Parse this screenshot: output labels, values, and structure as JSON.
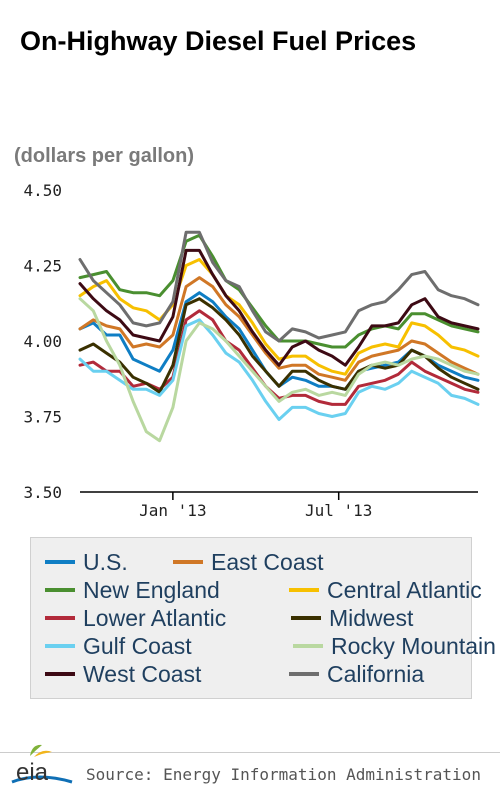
{
  "header": {
    "title": "On-Highway Diesel Fuel Prices",
    "units": "(dollars per gallon)"
  },
  "chart_data": {
    "type": "line",
    "title": "On-Highway Diesel Fuel Prices",
    "ylabel": "(dollars per gallon)",
    "xlabel": "",
    "ylim": [
      3.5,
      4.5
    ],
    "yticks": [
      "4.50",
      "4.25",
      "4.00",
      "3.75",
      "3.50"
    ],
    "xticks": [
      {
        "label": "Jan '13",
        "x": "2013-01-07"
      },
      {
        "label": "Jul '13",
        "x": "2013-07-01"
      }
    ],
    "x_range": [
      "2012-10-01",
      "2013-11-25"
    ],
    "x": [
      "2012-10-01",
      "2012-10-15",
      "2012-10-29",
      "2012-11-12",
      "2012-11-26",
      "2012-12-10",
      "2012-12-24",
      "2013-01-07",
      "2013-01-21",
      "2013-02-04",
      "2013-02-18",
      "2013-03-04",
      "2013-03-18",
      "2013-04-01",
      "2013-04-15",
      "2013-04-29",
      "2013-05-13",
      "2013-05-27",
      "2013-06-10",
      "2013-06-24",
      "2013-07-08",
      "2013-07-22",
      "2013-08-05",
      "2013-08-19",
      "2013-09-02",
      "2013-09-16",
      "2013-09-30",
      "2013-10-14",
      "2013-10-28",
      "2013-11-11",
      "2013-11-25"
    ],
    "series": [
      {
        "name": "U.S.",
        "color": "#0f7ec4",
        "values": [
          4.04,
          4.06,
          4.02,
          4.02,
          3.94,
          3.92,
          3.9,
          3.97,
          4.13,
          4.16,
          4.13,
          4.08,
          4.04,
          3.97,
          3.9,
          3.85,
          3.88,
          3.87,
          3.85,
          3.85,
          3.84,
          3.9,
          3.91,
          3.92,
          3.93,
          3.97,
          3.95,
          3.92,
          3.9,
          3.88,
          3.87
        ]
      },
      {
        "name": "East Coast",
        "color": "#d07726",
        "values": [
          4.04,
          4.07,
          4.05,
          4.04,
          3.98,
          3.99,
          3.98,
          4.02,
          4.18,
          4.21,
          4.18,
          4.12,
          4.08,
          4.02,
          3.96,
          3.91,
          3.92,
          3.92,
          3.89,
          3.88,
          3.87,
          3.93,
          3.95,
          3.96,
          3.97,
          4.0,
          3.99,
          3.96,
          3.93,
          3.91,
          3.89
        ]
      },
      {
        "name": "New England",
        "color": "#4a8f30",
        "values": [
          4.21,
          4.22,
          4.23,
          4.17,
          4.16,
          4.16,
          4.15,
          4.2,
          4.33,
          4.35,
          4.28,
          4.2,
          4.17,
          4.11,
          4.05,
          4.0,
          4.0,
          4.0,
          3.99,
          3.98,
          3.98,
          4.02,
          4.04,
          4.05,
          4.04,
          4.09,
          4.09,
          4.07,
          4.05,
          4.04,
          4.03
        ]
      },
      {
        "name": "Central Atlantic",
        "color": "#f7c000",
        "values": [
          4.15,
          4.18,
          4.2,
          4.14,
          4.11,
          4.1,
          4.07,
          4.12,
          4.25,
          4.27,
          4.22,
          4.15,
          4.12,
          4.06,
          3.99,
          3.94,
          3.95,
          3.95,
          3.92,
          3.9,
          3.89,
          3.96,
          3.98,
          3.99,
          3.98,
          4.06,
          4.05,
          4.02,
          3.98,
          3.97,
          3.95
        ]
      },
      {
        "name": "Lower Atlantic",
        "color": "#b22a3a",
        "values": [
          3.92,
          3.93,
          3.9,
          3.9,
          3.85,
          3.86,
          3.84,
          3.88,
          4.07,
          4.1,
          4.07,
          4.0,
          3.97,
          3.91,
          3.85,
          3.81,
          3.82,
          3.82,
          3.8,
          3.79,
          3.79,
          3.85,
          3.86,
          3.87,
          3.89,
          3.93,
          3.9,
          3.88,
          3.86,
          3.84,
          3.83
        ]
      },
      {
        "name": "Midwest",
        "color": "#3a3000",
        "values": [
          3.97,
          3.99,
          3.96,
          3.93,
          3.88,
          3.86,
          3.83,
          3.92,
          4.12,
          4.14,
          4.11,
          4.07,
          4.02,
          3.95,
          3.9,
          3.85,
          3.9,
          3.9,
          3.87,
          3.85,
          3.84,
          3.9,
          3.92,
          3.91,
          3.92,
          3.97,
          3.95,
          3.91,
          3.88,
          3.86,
          3.84
        ]
      },
      {
        "name": "Gulf Coast",
        "color": "#6ad0f0",
        "values": [
          3.94,
          3.9,
          3.9,
          3.87,
          3.84,
          3.84,
          3.82,
          3.87,
          4.05,
          4.07,
          4.02,
          3.96,
          3.93,
          3.87,
          3.8,
          3.74,
          3.78,
          3.78,
          3.76,
          3.75,
          3.76,
          3.83,
          3.85,
          3.84,
          3.86,
          3.9,
          3.88,
          3.86,
          3.82,
          3.81,
          3.79
        ]
      },
      {
        "name": "Rocky Mountain",
        "color": "#b9d8a0",
        "values": [
          4.14,
          4.1,
          4.0,
          3.92,
          3.8,
          3.7,
          3.67,
          3.78,
          4.0,
          4.06,
          4.04,
          4.0,
          3.95,
          3.9,
          3.85,
          3.8,
          3.83,
          3.84,
          3.82,
          3.83,
          3.82,
          3.89,
          3.92,
          3.93,
          3.92,
          3.94,
          3.95,
          3.94,
          3.92,
          3.9,
          3.89
        ]
      },
      {
        "name": "West Coast",
        "color": "#3d0a14",
        "values": [
          4.19,
          4.14,
          4.1,
          4.07,
          4.02,
          4.01,
          4.0,
          4.08,
          4.3,
          4.3,
          4.22,
          4.15,
          4.1,
          4.03,
          3.97,
          3.92,
          3.98,
          4.0,
          3.97,
          3.95,
          3.92,
          3.98,
          4.05,
          4.05,
          4.06,
          4.12,
          4.14,
          4.08,
          4.06,
          4.05,
          4.04
        ]
      },
      {
        "name": "California",
        "color": "#6e6e6e",
        "values": [
          4.27,
          4.2,
          4.16,
          4.12,
          4.06,
          4.05,
          4.06,
          4.13,
          4.36,
          4.36,
          4.26,
          4.2,
          4.18,
          4.1,
          4.03,
          4.0,
          4.04,
          4.03,
          4.01,
          4.02,
          4.03,
          4.1,
          4.12,
          4.13,
          4.17,
          4.22,
          4.23,
          4.17,
          4.15,
          4.14,
          4.12
        ]
      }
    ],
    "grid": false,
    "legend": "bottom"
  },
  "legend": {
    "items": [
      {
        "label": "U.S.",
        "color": "#0f7ec4"
      },
      {
        "label": "East Coast",
        "color": "#d07726"
      },
      {
        "label": "New England",
        "color": "#4a8f30"
      },
      {
        "label": "Central Atlantic",
        "color": "#f7c000"
      },
      {
        "label": "Lower Atlantic",
        "color": "#b22a3a"
      },
      {
        "label": "Midwest",
        "color": "#3a3000"
      },
      {
        "label": "Gulf Coast",
        "color": "#6ad0f0"
      },
      {
        "label": "Rocky Mountain",
        "color": "#b9d8a0"
      },
      {
        "label": "West Coast",
        "color": "#3d0a14"
      },
      {
        "label": "California",
        "color": "#6e6e6e"
      }
    ]
  },
  "footer": {
    "logo_text": "eia",
    "source": "Source: Energy Information Administration"
  }
}
